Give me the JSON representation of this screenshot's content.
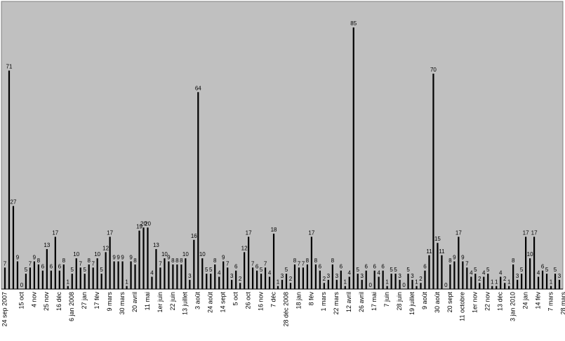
{
  "chart_data": {
    "type": "bar",
    "title": "",
    "xlabel": "",
    "ylabel": "",
    "ylim": [
      0,
      88
    ],
    "grid": false,
    "legend": "none",
    "plot_background": "#c0c0c0",
    "bar_color": "#000000",
    "values": [
      7,
      71,
      27,
      9,
      0,
      5,
      7,
      9,
      8,
      6,
      13,
      6,
      17,
      6,
      8,
      1,
      5,
      10,
      7,
      5,
      8,
      7,
      10,
      5,
      12,
      17,
      9,
      9,
      9,
      1,
      9,
      8,
      19,
      20,
      20,
      4,
      13,
      7,
      10,
      9,
      8,
      8,
      8,
      10,
      3,
      16,
      64,
      10,
      5,
      5,
      8,
      4,
      9,
      7,
      3,
      6,
      2,
      12,
      17,
      7,
      6,
      5,
      7,
      4,
      18,
      1,
      3,
      5,
      2,
      8,
      7,
      7,
      8,
      17,
      8,
      6,
      2,
      3,
      8,
      3,
      6,
      1,
      4,
      85,
      5,
      3,
      6,
      0,
      6,
      4,
      6,
      1,
      5,
      5,
      3,
      0,
      5,
      3,
      1,
      2,
      6,
      11,
      70,
      15,
      11,
      0,
      8,
      9,
      17,
      9,
      7,
      4,
      5,
      2,
      4,
      5,
      1,
      1,
      4,
      2,
      1,
      8,
      3,
      5,
      17,
      10,
      17,
      4,
      6,
      5,
      1,
      5,
      3
    ],
    "x_tick_labels": [
      {
        "index": 0,
        "label": "24 sep 2007"
      },
      {
        "index": 4,
        "label": "15 oct"
      },
      {
        "index": 7,
        "label": "4 nov"
      },
      {
        "index": 10,
        "label": "25 nov"
      },
      {
        "index": 13,
        "label": "16 déc"
      },
      {
        "index": 16,
        "label": "6 jan 2008"
      },
      {
        "index": 19,
        "label": "27 jan"
      },
      {
        "index": 22,
        "label": "17 fév"
      },
      {
        "index": 25,
        "label": "9 mars"
      },
      {
        "index": 28,
        "label": "30 mars"
      },
      {
        "index": 31,
        "label": "20 avril"
      },
      {
        "index": 34,
        "label": "11 mai"
      },
      {
        "index": 37,
        "label": "1er juin"
      },
      {
        "index": 40,
        "label": "22 juin"
      },
      {
        "index": 43,
        "label": "13 juillet"
      },
      {
        "index": 46,
        "label": "3 août"
      },
      {
        "index": 49,
        "label": "24 août"
      },
      {
        "index": 52,
        "label": "14 sept"
      },
      {
        "index": 55,
        "label": "5 oct"
      },
      {
        "index": 58,
        "label": "26 oct"
      },
      {
        "index": 61,
        "label": "16 nov"
      },
      {
        "index": 64,
        "label": "7 déc"
      },
      {
        "index": 67,
        "label": "28 déc 2008"
      },
      {
        "index": 70,
        "label": "18 jan"
      },
      {
        "index": 73,
        "label": "8 fév"
      },
      {
        "index": 76,
        "label": "1 mars"
      },
      {
        "index": 79,
        "label": "22 mars"
      },
      {
        "index": 82,
        "label": "12 avril"
      },
      {
        "index": 85,
        "label": "26 avril"
      },
      {
        "index": 88,
        "label": "17 mai"
      },
      {
        "index": 91,
        "label": "7 juin"
      },
      {
        "index": 94,
        "label": "28 juin"
      },
      {
        "index": 97,
        "label": "19 juillet"
      },
      {
        "index": 100,
        "label": "9 août"
      },
      {
        "index": 103,
        "label": "30 août"
      },
      {
        "index": 106,
        "label": "20 sept"
      },
      {
        "index": 109,
        "label": "11 octobre"
      },
      {
        "index": 112,
        "label": "1er nov"
      },
      {
        "index": 115,
        "label": "22 nov"
      },
      {
        "index": 118,
        "label": "13 déc"
      },
      {
        "index": 121,
        "label": "3 jan 2010"
      },
      {
        "index": 124,
        "label": "24 jan"
      },
      {
        "index": 127,
        "label": "14 fév"
      },
      {
        "index": 130,
        "label": "7 mars"
      },
      {
        "index": 133,
        "label": "28 mars"
      }
    ]
  }
}
